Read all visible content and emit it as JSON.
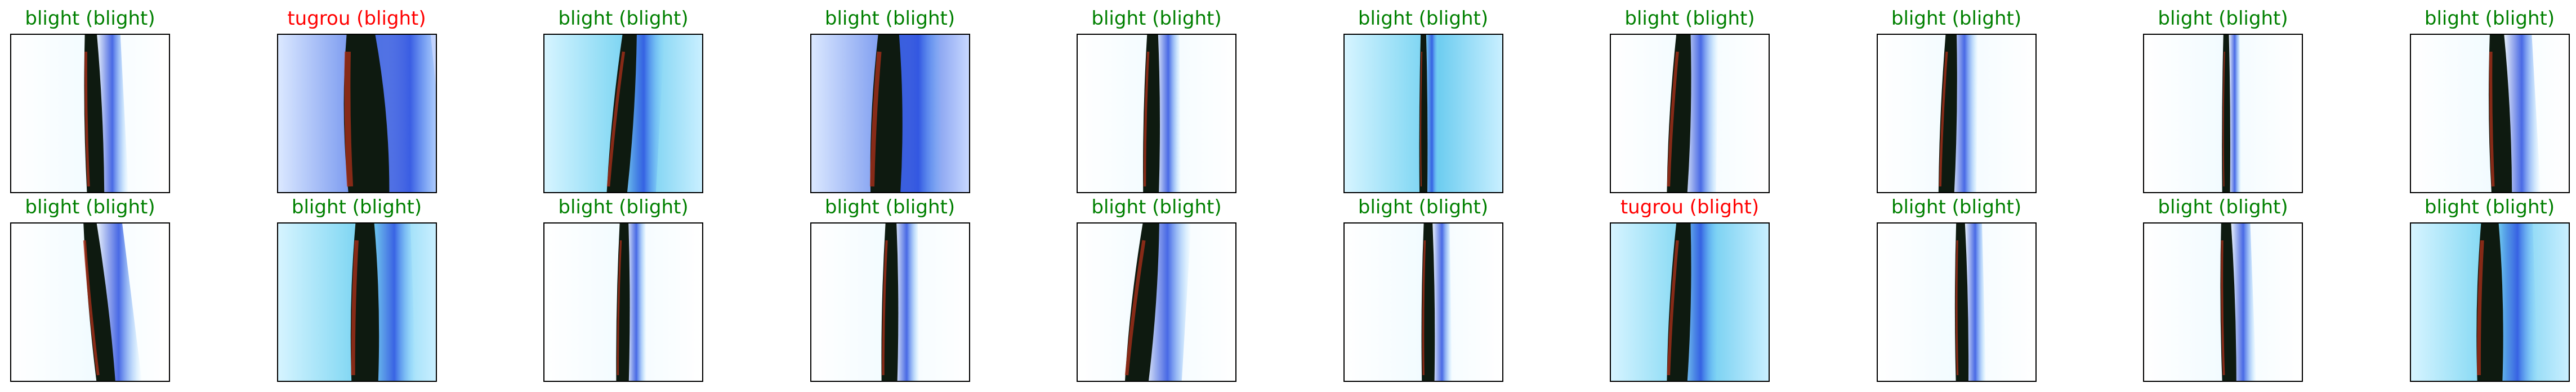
{
  "colors": {
    "correct": "#008000",
    "incorrect": "#ff0000"
  },
  "samples": [
    {
      "title": "blight (blight)",
      "correct": true,
      "bg": "white",
      "offset": 0.02,
      "lean": -0.03,
      "width": 0.11
    },
    {
      "title": "tugrou (blight)",
      "correct": false,
      "bg": "blue",
      "offset": 0.05,
      "lean": -0.05,
      "width": 0.26
    },
    {
      "title": "blight (blight)",
      "correct": true,
      "bg": "cyan",
      "offset": 0.0,
      "lean": 0.08,
      "width": 0.13
    },
    {
      "title": "blight (blight)",
      "correct": true,
      "bg": "blue",
      "offset": -0.02,
      "lean": 0.02,
      "width": 0.19
    },
    {
      "title": "blight (blight)",
      "correct": true,
      "bg": "white",
      "offset": -0.03,
      "lean": 0.01,
      "width": 0.1
    },
    {
      "title": "blight (blight)",
      "correct": true,
      "bg": "cyan",
      "offset": 0.0,
      "lean": 0.0,
      "width": 0.05
    },
    {
      "title": "blight (blight)",
      "correct": true,
      "bg": "white",
      "offset": -0.06,
      "lean": 0.04,
      "width": 0.13
    },
    {
      "title": "blight (blight)",
      "correct": true,
      "bg": "white",
      "offset": -0.05,
      "lean": 0.03,
      "width": 0.1
    },
    {
      "title": "blight (blight)",
      "correct": true,
      "bg": "white",
      "offset": 0.02,
      "lean": 0.0,
      "width": 0.05
    },
    {
      "title": "blight (blight)",
      "correct": true,
      "bg": "white",
      "offset": 0.06,
      "lean": -0.03,
      "width": 0.13
    },
    {
      "title": "blight (blight)",
      "correct": true,
      "bg": "white",
      "offset": 0.05,
      "lean": -0.1,
      "width": 0.12
    },
    {
      "title": "blight (blight)",
      "correct": true,
      "bg": "cyan",
      "offset": 0.05,
      "lean": 0.0,
      "width": 0.17
    },
    {
      "title": "blight (blight)",
      "correct": true,
      "bg": "white",
      "offset": 0.0,
      "lean": 0.01,
      "width": 0.08
    },
    {
      "title": "blight (blight)",
      "correct": true,
      "bg": "white",
      "offset": 0.0,
      "lean": 0.01,
      "width": 0.1
    },
    {
      "title": "blight (blight)",
      "correct": true,
      "bg": "white",
      "offset": -0.08,
      "lean": 0.09,
      "width": 0.15
    },
    {
      "title": "blight (blight)",
      "correct": true,
      "bg": "white",
      "offset": 0.03,
      "lean": 0.0,
      "width": 0.08
    },
    {
      "title": "tugrou (blight)",
      "correct": false,
      "bg": "cyan",
      "offset": -0.06,
      "lean": 0.04,
      "width": 0.13
    },
    {
      "title": "blight (blight)",
      "correct": true,
      "bg": "white",
      "offset": 0.03,
      "lean": -0.01,
      "width": 0.08
    },
    {
      "title": "blight (blight)",
      "correct": true,
      "bg": "white",
      "offset": 0.03,
      "lean": -0.02,
      "width": 0.09
    },
    {
      "title": "blight (blight)",
      "correct": true,
      "bg": "cyan",
      "offset": 0.0,
      "lean": 0.0,
      "width": 0.16
    }
  ]
}
